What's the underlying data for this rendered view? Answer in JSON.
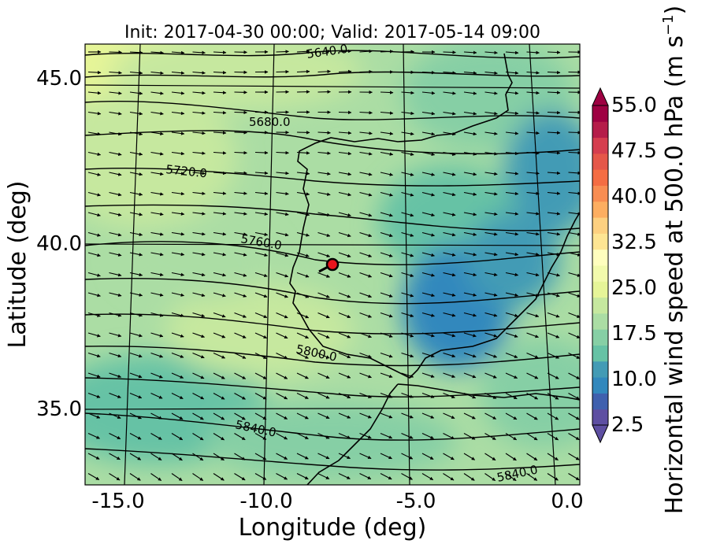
{
  "title": "Init: 2017-04-30 00:00; Valid: 2017-05-14 09:00",
  "xlabel": "Longitude (deg)",
  "ylabel": "Latitude (deg)",
  "colorbar_label": "Horizontal wind speed at 500.0 hPa (m s",
  "colorbar_label_sup": "−1",
  "colorbar_label_end": ")",
  "x_ticks": [
    "-15.0",
    "-10.0",
    "-5.0",
    "0.0"
  ],
  "y_ticks": [
    "45.0",
    "40.0",
    "35.0"
  ],
  "colorbar_ticks": [
    "55.0",
    "47.5",
    "40.0",
    "32.5",
    "25.0",
    "17.5",
    "10.0",
    "2.5"
  ],
  "contour_labels": [
    "5640.0",
    "5680.0",
    "5720.0",
    "5760.0",
    "5800.0",
    "5840.0",
    "5840.0"
  ],
  "colors": {
    "marker_fill": "#e8141c",
    "colorbar": [
      "#5e4fa2",
      "#3f60ae",
      "#3288bd",
      "#439bb5",
      "#66c2a5",
      "#86cfa5",
      "#abdda4",
      "#c6e89f",
      "#e6f598",
      "#f2faac",
      "#fffebe",
      "#fee593",
      "#fdd080",
      "#fdae61",
      "#f88d52",
      "#f46d43",
      "#e55749",
      "#d53e4f",
      "#b51d4a",
      "#9e0142"
    ]
  },
  "chart_data": {
    "type": "map",
    "field": "Horizontal wind speed at 500.0 hPa",
    "units": "m s-1",
    "xlim": [
      -16,
      0.2
    ],
    "ylim": [
      32.6,
      46.1
    ],
    "color_range": [
      2.5,
      55.0
    ],
    "contour_levels": [
      5640.0,
      5680.0,
      5720.0,
      5760.0,
      5800.0,
      5840.0
    ],
    "marker": {
      "lon": -7.7,
      "lat": 39.3
    }
  }
}
